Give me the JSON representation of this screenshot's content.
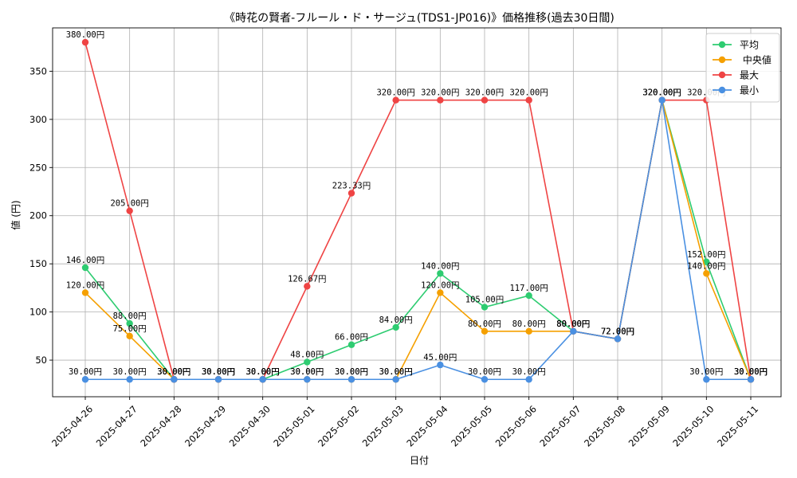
{
  "chart_data": {
    "type": "line",
    "title": "《時花の賢者-フルール・ド・サージュ(TDS1-JP016)》価格推移(過去30日間)",
    "xlabel": "日付",
    "ylabel": "値 (円)",
    "ylim": [
      12,
      395
    ],
    "yticks": [
      50,
      100,
      150,
      200,
      250,
      300,
      350
    ],
    "grid": true,
    "legend_position": "top-right",
    "categories": [
      "2025-04-26",
      "2025-04-27",
      "2025-04-28",
      "2025-04-29",
      "2025-04-30",
      "2025-05-01",
      "2025-05-02",
      "2025-05-03",
      "2025-05-04",
      "2025-05-05",
      "2025-05-06",
      "2025-05-07",
      "2025-05-08",
      "2025-05-09",
      "2025-05-10",
      "2025-05-11"
    ],
    "series": [
      {
        "name": "平均",
        "color": "#2ecc71",
        "values": [
          146,
          88,
          30,
          30,
          30,
          48,
          66,
          84,
          140,
          105,
          117,
          80,
          72,
          320,
          152,
          30
        ],
        "labels": [
          "146.00円",
          "88.00円",
          "30.00円",
          "30.00円",
          "30.00円",
          "48.00円",
          "66.00円",
          "84.00円",
          "140.00円",
          "105.00円",
          "117.00円",
          "80.00円",
          "72.00円",
          "320.00円",
          "152.00円",
          "30.00円"
        ]
      },
      {
        "name": " 中央値",
        "color": "#f5a000",
        "values": [
          120,
          75,
          30,
          30,
          30,
          30,
          30,
          30,
          120,
          80,
          80,
          80,
          72,
          320,
          140,
          30
        ],
        "labels": [
          "120.00円",
          "75.00円",
          "30.00円",
          "30.00円",
          "30.00円",
          "30.00円",
          "30.00円",
          "30.00円",
          "120.00円",
          "80.00円",
          "80.00円",
          "80.00円",
          "72.00円",
          "320.00円",
          "140.00円",
          "30.00円"
        ]
      },
      {
        "name": "最大",
        "color": "#ef4444",
        "values": [
          380,
          205,
          30,
          30,
          30,
          126.67,
          223.33,
          320,
          320,
          320,
          320,
          80,
          72,
          320,
          320,
          30
        ],
        "labels": [
          "380.00円",
          "205.00円",
          "30.00円",
          "30.00円",
          "30.00円",
          "126.67円",
          "223.33円",
          "320.00円",
          "320.00円",
          "320.00円",
          "320.00円",
          "80.00円",
          "72.00円",
          "320.00円",
          "320.00円",
          "30.00円"
        ]
      },
      {
        "name": "最小",
        "color": "#4a90e2",
        "values": [
          30,
          30,
          30,
          30,
          30,
          30,
          30,
          30,
          45,
          30,
          30,
          80,
          72,
          320,
          30,
          30
        ],
        "labels": [
          "30.00円",
          "30.00円",
          "30.00円",
          "30.00円",
          "30.00円",
          "30.00円",
          "30.00円",
          "30.00円",
          "45.00円",
          "30.00円",
          "30.00円",
          "80.00円",
          "72.00円",
          "320.00円",
          "30.00円",
          "30.00円"
        ]
      }
    ]
  }
}
